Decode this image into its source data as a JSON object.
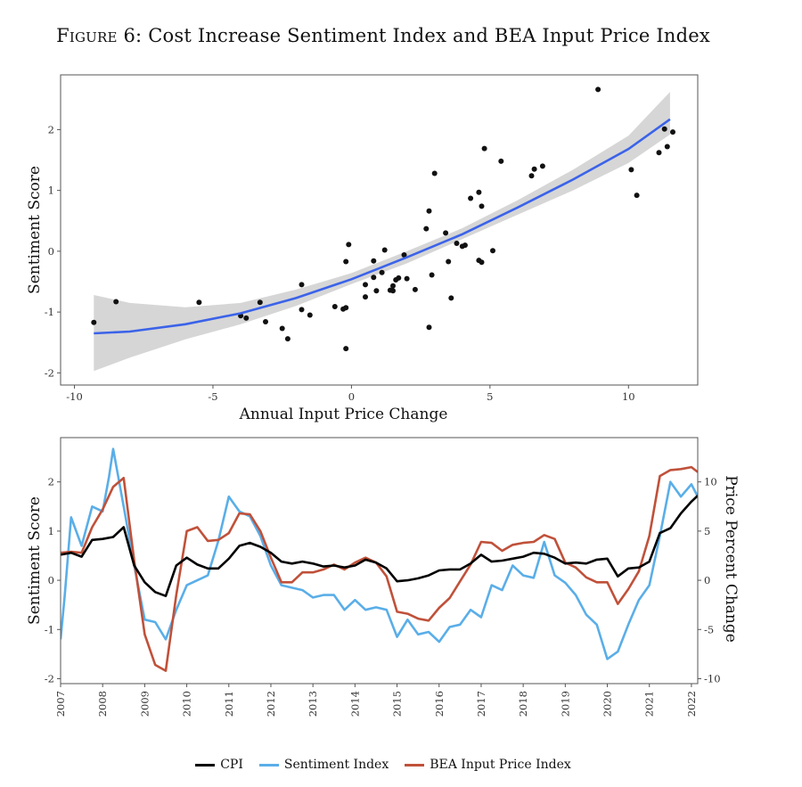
{
  "figure_title_prefix": "Figure 6:",
  "figure_title_text": "Cost Increase Sentiment Index and BEA Input Price Index",
  "colors": {
    "fit": "#3b63e9",
    "band": "#d6d6d6",
    "points": "#111111",
    "cpi": "#000000",
    "sentiment": "#5aaee8",
    "bea": "#c0513a"
  },
  "legend": [
    {
      "label": "CPI",
      "color": "#000000"
    },
    {
      "label": "Sentiment Index",
      "color": "#5aaee8"
    },
    {
      "label": "BEA Input Price Index",
      "color": "#c0513a"
    }
  ],
  "chart_data": [
    {
      "type": "scatter",
      "title": "",
      "xlabel": "Annual Input Price Change",
      "ylabel": "Sentiment Score",
      "xlim": [
        -10.5,
        12.5
      ],
      "ylim": [
        -2.2,
        2.9
      ],
      "xticks": [
        -10,
        -5,
        0,
        5,
        10
      ],
      "yticks": [
        -2,
        -1,
        0,
        1,
        2
      ],
      "grid": false,
      "points": [
        [
          -9.3,
          -1.17
        ],
        [
          -8.5,
          -0.83
        ],
        [
          -5.5,
          -0.84
        ],
        [
          -4,
          -1.06
        ],
        [
          -3.8,
          -1.1
        ],
        [
          -3.3,
          -0.84
        ],
        [
          -3.1,
          -1.16
        ],
        [
          -2.5,
          -1.27
        ],
        [
          -2.3,
          -1.44
        ],
        [
          -1.8,
          -0.55
        ],
        [
          -1.8,
          -0.96
        ],
        [
          -1.5,
          -1.05
        ],
        [
          -0.6,
          -0.91
        ],
        [
          -0.3,
          -0.95
        ],
        [
          -0.2,
          -0.93
        ],
        [
          -0.2,
          -0.17
        ],
        [
          -0.2,
          -1.6
        ],
        [
          -0.1,
          0.11
        ],
        [
          0.5,
          -0.55
        ],
        [
          0.5,
          -0.75
        ],
        [
          0.8,
          -0.43
        ],
        [
          0.8,
          -0.16
        ],
        [
          0.9,
          -0.65
        ],
        [
          1.1,
          -0.35
        ],
        [
          1.2,
          0.02
        ],
        [
          1.4,
          -0.64
        ],
        [
          1.5,
          -0.57
        ],
        [
          1.5,
          -0.65
        ],
        [
          1.6,
          -0.47
        ],
        [
          1.7,
          -0.44
        ],
        [
          1.9,
          -0.06
        ],
        [
          2.0,
          -0.45
        ],
        [
          2.3,
          -0.63
        ],
        [
          2.7,
          0.37
        ],
        [
          2.8,
          0.66
        ],
        [
          2.8,
          -1.25
        ],
        [
          2.9,
          -0.39
        ],
        [
          3.0,
          1.28
        ],
        [
          3.4,
          0.3
        ],
        [
          3.5,
          -0.17
        ],
        [
          3.6,
          -0.77
        ],
        [
          3.8,
          0.13
        ],
        [
          4.0,
          0.08
        ],
        [
          4.1,
          0.1
        ],
        [
          4.3,
          0.87
        ],
        [
          4.6,
          0.97
        ],
        [
          4.6,
          -0.15
        ],
        [
          4.7,
          0.74
        ],
        [
          4.7,
          -0.18
        ],
        [
          4.8,
          1.69
        ],
        [
          5.1,
          0.01
        ],
        [
          5.4,
          1.48
        ],
        [
          6.5,
          1.24
        ],
        [
          6.6,
          1.35
        ],
        [
          6.9,
          1.4
        ],
        [
          8.9,
          2.66
        ],
        [
          10.1,
          1.34
        ],
        [
          10.3,
          0.92
        ],
        [
          11.1,
          1.62
        ],
        [
          11.3,
          2.01
        ],
        [
          11.4,
          1.72
        ],
        [
          11.6,
          1.96
        ]
      ],
      "fit": {
        "x": [
          -9.3,
          -8,
          -6,
          -4,
          -2,
          0,
          2,
          4,
          6,
          8,
          10,
          11.5
        ],
        "y": [
          -1.35,
          -1.32,
          -1.2,
          -1.02,
          -0.77,
          -0.46,
          -0.1,
          0.28,
          0.72,
          1.18,
          1.68,
          2.17
        ],
        "lower": [
          -1.97,
          -1.75,
          -1.45,
          -1.2,
          -0.9,
          -0.54,
          -0.2,
          0.2,
          0.6,
          1.0,
          1.45,
          1.92
        ],
        "upper": [
          -0.72,
          -0.85,
          -0.92,
          -0.85,
          -0.63,
          -0.36,
          0.0,
          0.38,
          0.84,
          1.34,
          1.9,
          2.62
        ]
      }
    },
    {
      "type": "line",
      "title": "",
      "xlabel": "",
      "ylabel": "Sentiment Score",
      "y2label": "Price Percent Change",
      "xlim": [
        2007,
        2022.15
      ],
      "ylim": [
        -2.1,
        2.9
      ],
      "y2lim": [
        -10.5,
        14.5
      ],
      "yticks": [
        -2,
        -1,
        0,
        1,
        2
      ],
      "y2ticks": [
        -10,
        -5,
        0,
        5,
        10
      ],
      "xticks": [
        "2007",
        "2008",
        "2009",
        "2010",
        "2011",
        "2012",
        "2013",
        "2014",
        "2015",
        "2016",
        "2017",
        "2018",
        "2019",
        "2020",
        "2021",
        "2022"
      ],
      "grid": false,
      "series": [
        {
          "name": "CPI",
          "axis": "right",
          "color": "#000000",
          "x": [
            2007,
            2007.25,
            2007.5,
            2007.75,
            2008,
            2008.25,
            2008.5,
            2008.75,
            2009,
            2009.25,
            2009.5,
            2009.75,
            2010,
            2010.25,
            2010.5,
            2010.75,
            2011,
            2011.25,
            2011.5,
            2011.75,
            2012,
            2012.25,
            2012.5,
            2012.75,
            2013,
            2013.25,
            2013.5,
            2013.75,
            2014,
            2014.25,
            2014.5,
            2014.75,
            2015,
            2015.25,
            2015.5,
            2015.75,
            2016,
            2016.25,
            2016.5,
            2016.75,
            2017,
            2017.25,
            2017.5,
            2017.75,
            2018,
            2018.25,
            2018.5,
            2018.75,
            2019,
            2019.25,
            2019.5,
            2019.75,
            2020,
            2020.25,
            2020.5,
            2020.75,
            2021,
            2021.25,
            2021.5,
            2021.75,
            2022,
            2022.15
          ],
          "y": [
            2.6,
            2.8,
            2.4,
            4.1,
            4.2,
            4.4,
            5.4,
            1.5,
            -0.2,
            -1.2,
            -1.6,
            1.5,
            2.3,
            1.6,
            1.2,
            1.2,
            2.2,
            3.5,
            3.8,
            3.4,
            2.8,
            1.9,
            1.7,
            1.9,
            1.7,
            1.4,
            1.5,
            1.3,
            1.5,
            2.1,
            1.8,
            1.2,
            -0.1,
            0.0,
            0.2,
            0.5,
            1.0,
            1.1,
            1.1,
            1.7,
            2.6,
            1.9,
            2.0,
            2.2,
            2.4,
            2.8,
            2.7,
            2.3,
            1.7,
            1.8,
            1.7,
            2.1,
            2.2,
            0.4,
            1.2,
            1.3,
            1.9,
            4.8,
            5.3,
            6.8,
            8.0,
            8.6
          ]
        },
        {
          "name": "Sentiment Index",
          "axis": "left",
          "color": "#5aaee8",
          "x": [
            2007,
            2007.1,
            2007.25,
            2007.5,
            2007.75,
            2008,
            2008.15,
            2008.25,
            2008.5,
            2008.75,
            2009,
            2009.25,
            2009.5,
            2009.75,
            2010,
            2010.25,
            2010.5,
            2010.75,
            2011,
            2011.25,
            2011.5,
            2011.75,
            2012,
            2012.25,
            2012.5,
            2012.75,
            2013,
            2013.25,
            2013.5,
            2013.75,
            2014,
            2014.25,
            2014.5,
            2014.75,
            2015,
            2015.25,
            2015.5,
            2015.75,
            2016,
            2016.25,
            2016.5,
            2016.75,
            2017,
            2017.25,
            2017.5,
            2017.75,
            2018,
            2018.25,
            2018.5,
            2018.75,
            2019,
            2019.25,
            2019.5,
            2019.75,
            2020,
            2020.25,
            2020.5,
            2020.75,
            2021,
            2021.25,
            2021.5,
            2021.75,
            2022,
            2022.15
          ],
          "y": [
            -1.2,
            -0.3,
            1.28,
            0.7,
            1.5,
            1.4,
            2.1,
            2.67,
            1.5,
            0.3,
            -0.8,
            -0.85,
            -1.2,
            -0.6,
            -0.1,
            0.0,
            0.1,
            0.8,
            1.7,
            1.4,
            1.3,
            0.9,
            0.3,
            -0.1,
            -0.15,
            -0.2,
            -0.35,
            -0.3,
            -0.3,
            -0.6,
            -0.4,
            -0.6,
            -0.55,
            -0.6,
            -1.15,
            -0.8,
            -1.1,
            -1.05,
            -1.25,
            -0.95,
            -0.9,
            -0.6,
            -0.75,
            -0.1,
            -0.2,
            0.3,
            0.1,
            0.05,
            0.78,
            0.1,
            -0.05,
            -0.3,
            -0.7,
            -0.9,
            -1.6,
            -1.45,
            -0.9,
            -0.4,
            -0.1,
            0.9,
            2.0,
            1.7,
            1.95,
            1.7
          ]
        },
        {
          "name": "BEA Input Price Index",
          "axis": "right",
          "color": "#c0513a",
          "x": [
            2007,
            2007.25,
            2007.5,
            2007.75,
            2008,
            2008.25,
            2008.5,
            2008.75,
            2009,
            2009.25,
            2009.5,
            2009.75,
            2010,
            2010.25,
            2010.5,
            2010.75,
            2011,
            2011.25,
            2011.5,
            2011.75,
            2012,
            2012.25,
            2012.5,
            2012.75,
            2013,
            2013.25,
            2013.5,
            2013.75,
            2014,
            2014.25,
            2014.5,
            2014.75,
            2015,
            2015.25,
            2015.5,
            2015.75,
            2016,
            2016.25,
            2016.5,
            2016.75,
            2017,
            2017.25,
            2017.5,
            2017.75,
            2018,
            2018.25,
            2018.5,
            2018.75,
            2019,
            2019.25,
            2019.5,
            2019.75,
            2020,
            2020.25,
            2020.5,
            2020.75,
            2021,
            2021.25,
            2021.5,
            2021.75,
            2022,
            2022.15
          ],
          "y": [
            2.8,
            2.9,
            2.8,
            5.4,
            7.2,
            9.5,
            10.4,
            2.0,
            -5.5,
            -8.6,
            -9.2,
            -1.5,
            5.0,
            5.4,
            4.0,
            4.1,
            4.8,
            6.8,
            6.7,
            5.0,
            2.3,
            -0.2,
            -0.2,
            0.8,
            0.8,
            1.1,
            1.6,
            1.1,
            1.8,
            2.3,
            1.8,
            0.4,
            -3.2,
            -3.4,
            -3.9,
            -4.1,
            -2.8,
            -1.8,
            -0.1,
            1.6,
            3.9,
            3.8,
            3.0,
            3.6,
            3.8,
            3.9,
            4.6,
            4.2,
            1.8,
            1.3,
            0.3,
            -0.2,
            -0.2,
            -2.4,
            -0.9,
            0.9,
            4.5,
            10.6,
            11.2,
            11.3,
            11.5,
            11.0
          ]
        }
      ]
    }
  ]
}
